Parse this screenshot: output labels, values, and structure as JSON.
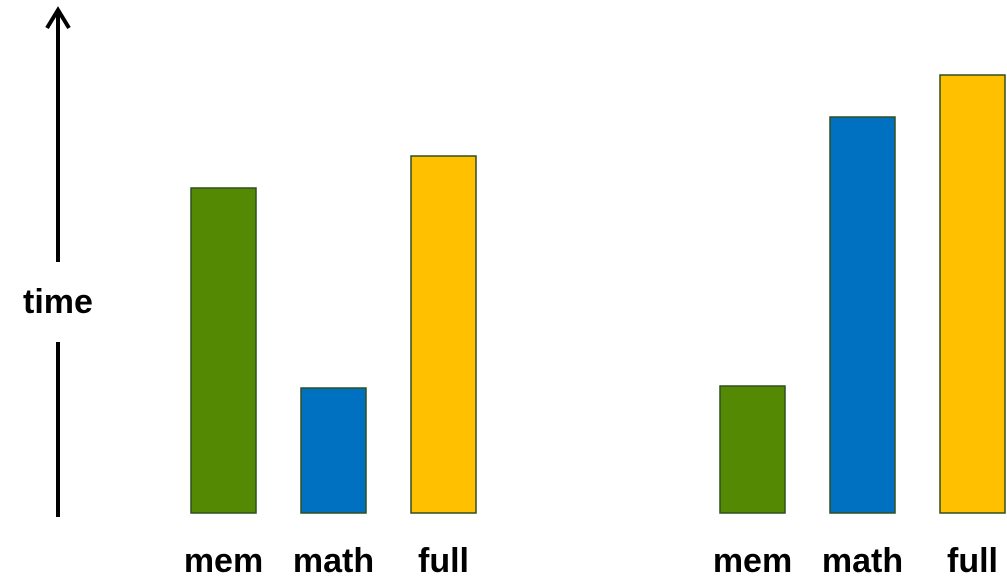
{
  "chart_data": [
    {
      "type": "bar",
      "categories": [
        "mem",
        "math",
        "full"
      ],
      "values": [
        325,
        125,
        357
      ],
      "ylabel": "time",
      "ylim": [
        0,
        450
      ],
      "grid": false,
      "legend": "none",
      "colors": [
        "#548A03",
        "#0070C0",
        "#FFC000"
      ]
    },
    {
      "type": "bar",
      "categories": [
        "mem",
        "math",
        "full"
      ],
      "values": [
        127,
        396,
        438
      ],
      "ylim": [
        0,
        450
      ],
      "grid": false,
      "legend": "none",
      "colors": [
        "#548A03",
        "#0070C0",
        "#FFC000"
      ]
    }
  ],
  "colors": {
    "bar_stroke": "#2F4F1E",
    "axis": "#000000"
  }
}
